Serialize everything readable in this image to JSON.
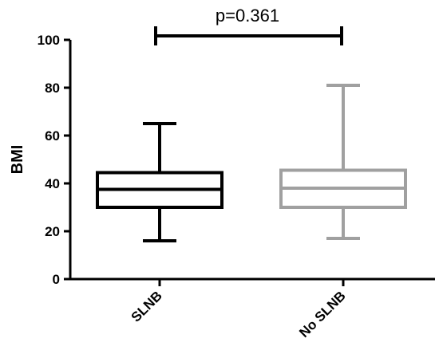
{
  "chart_data": {
    "type": "boxplot",
    "title": "",
    "xlabel": "",
    "ylabel": "BMI",
    "ylim": [
      0,
      100
    ],
    "yticks": [
      "0",
      "20",
      "40",
      "60",
      "80",
      "100"
    ],
    "categories": [
      "SLNB",
      "No SLNB"
    ],
    "series": [
      {
        "category": "SLNB",
        "min": 16,
        "q1": 30,
        "median": 37.5,
        "q3": 44.5,
        "max": 65,
        "color": "#000000"
      },
      {
        "category": "No SLNB",
        "min": 17,
        "q1": 30,
        "median": 38,
        "q3": 45.5,
        "max": 81,
        "color": "#a0a0a0"
      }
    ],
    "annotation": {
      "text": "p=0.361",
      "between": [
        "SLNB",
        "No SLNB"
      ]
    },
    "grid": false,
    "legend": "none"
  }
}
